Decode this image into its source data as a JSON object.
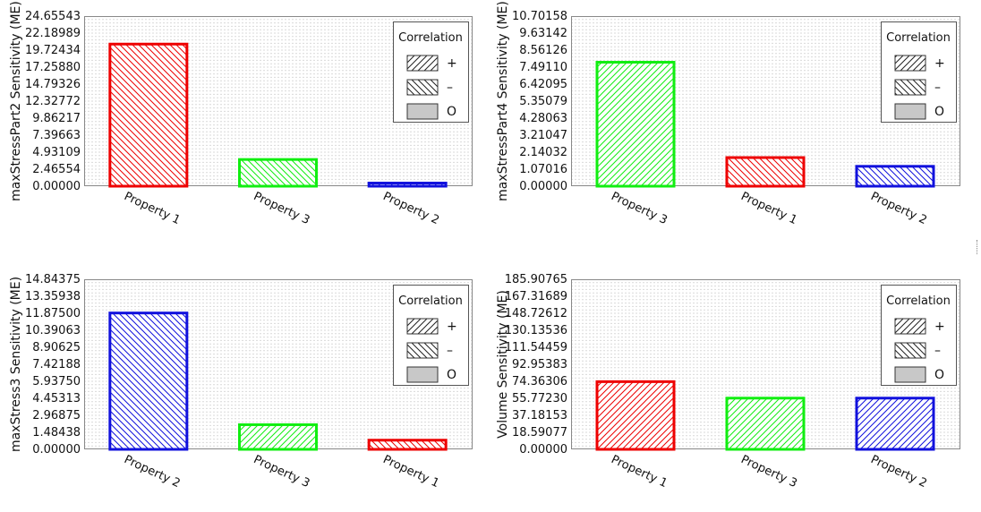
{
  "legend": {
    "title": "Correlation",
    "entries": [
      {
        "symbol": "+",
        "pattern": "fwd"
      },
      {
        "symbol": "–",
        "pattern": "back"
      },
      {
        "symbol": "O",
        "pattern": "solid"
      }
    ]
  },
  "colors": {
    "red": "#ee0000",
    "green": "#11ee11",
    "blue": "#1111dd",
    "plot_border": "#888888",
    "grid": "#d9d9d9"
  },
  "chart_data": [
    {
      "type": "bar",
      "ylabel": "maxStressPart2 Sensitivity (ME)",
      "yticks": [
        "0.00000",
        "2.46554",
        "4.93109",
        "7.39663",
        "9.86217",
        "12.32772",
        "14.79326",
        "17.25880",
        "19.72434",
        "22.18989",
        "24.65543"
      ],
      "ylim": [
        0,
        24.65543
      ],
      "categories": [
        "Property 1",
        "Property 3",
        "Property 2"
      ],
      "values": [
        20.6,
        3.87,
        0.45
      ],
      "colors": [
        "red",
        "green",
        "blue"
      ],
      "patterns": [
        "back",
        "back",
        "fwd"
      ],
      "legend_position": "top-right",
      "grid": true
    },
    {
      "type": "bar",
      "ylabel": "maxStressPart4 Sensitivity (ME)",
      "yticks": [
        "0.00000",
        "1.07016",
        "2.14032",
        "3.21047",
        "4.28063",
        "5.35079",
        "6.42095",
        "7.49110",
        "8.56126",
        "9.63142",
        "10.70158"
      ],
      "ylim": [
        0,
        10.70158
      ],
      "categories": [
        "Property 3",
        "Property 1",
        "Property 2"
      ],
      "values": [
        7.8,
        1.8,
        1.25
      ],
      "colors": [
        "green",
        "red",
        "blue"
      ],
      "patterns": [
        "fwd",
        "back",
        "back"
      ],
      "legend_position": "top-right",
      "grid": true
    },
    {
      "type": "bar",
      "ylabel": "maxStress3 Sensitivity (ME)",
      "yticks": [
        "0.00000",
        "1.48438",
        "2.96875",
        "4.45313",
        "5.93750",
        "7.42188",
        "8.90625",
        "10.39063",
        "11.87500",
        "13.35938",
        "14.84375"
      ],
      "ylim": [
        0,
        14.84375
      ],
      "categories": [
        "Property 2",
        "Property 3",
        "Property 1"
      ],
      "values": [
        11.9,
        2.15,
        0.8
      ],
      "colors": [
        "blue",
        "green",
        "red"
      ],
      "patterns": [
        "back",
        "fwd",
        "back"
      ],
      "legend_position": "top-right",
      "grid": true
    },
    {
      "type": "bar",
      "ylabel": "Volume Sensitivity (ME)",
      "yticks": [
        "0.00000",
        "18.59077",
        "37.18153",
        "55.77230",
        "74.36306",
        "92.95383",
        "111.54459",
        "130.13536",
        "148.72612",
        "167.31689",
        "185.90765"
      ],
      "ylim": [
        0,
        185.90765
      ],
      "categories": [
        "Property 1",
        "Property 3",
        "Property 2"
      ],
      "values": [
        74.0,
        56.0,
        56.0
      ],
      "colors": [
        "red",
        "green",
        "blue"
      ],
      "patterns": [
        "fwd",
        "fwd",
        "fwd"
      ],
      "legend_position": "top-right",
      "grid": true
    }
  ]
}
